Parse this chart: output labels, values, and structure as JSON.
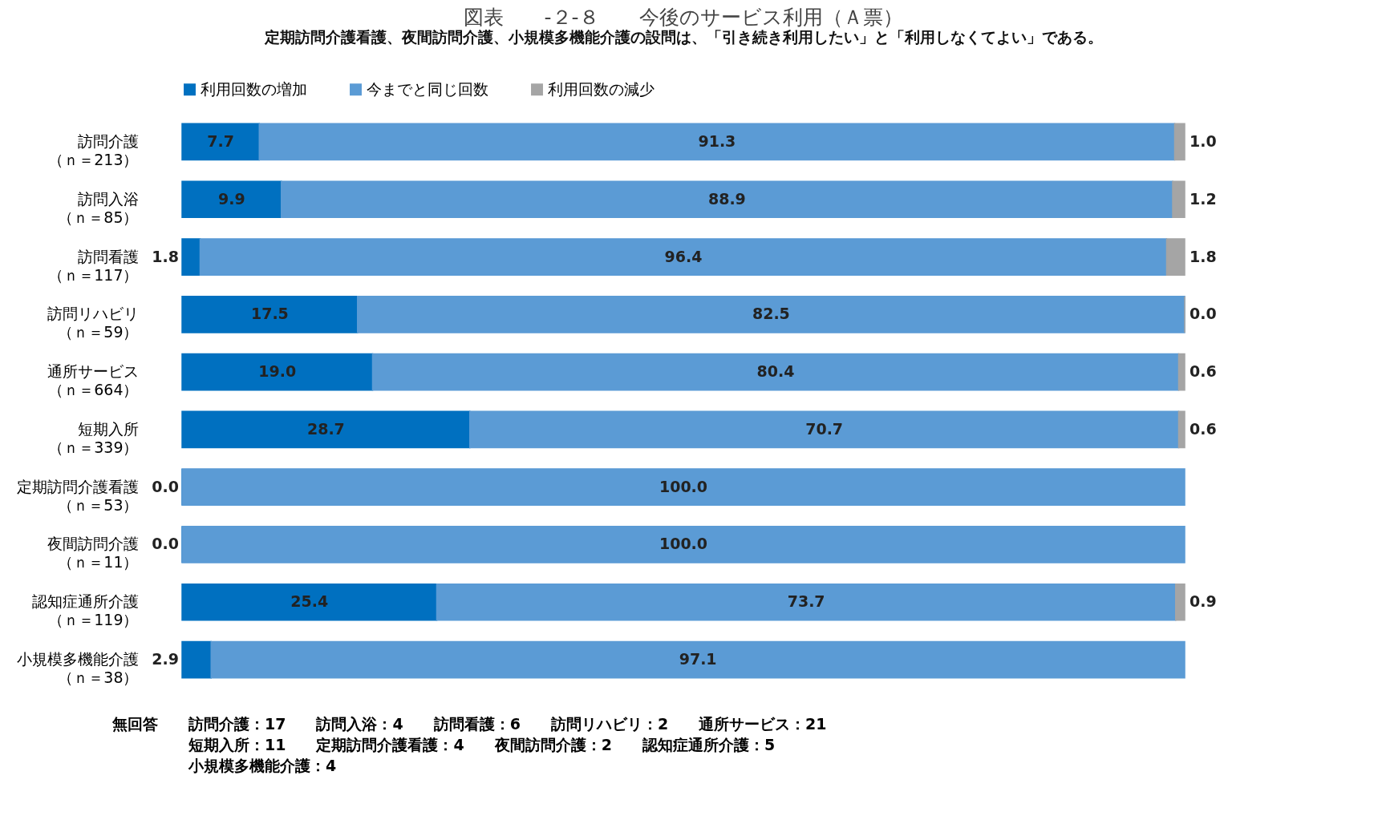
{
  "chart_data": {
    "type": "bar",
    "orientation": "horizontal",
    "stacked": true,
    "title": "図表　　-２-８　　今後のサービス利用（Ａ票）",
    "subtitle": "　定期訪問介護看護、夜間訪問介護、小規模多機能介護の設問は、「引き続き利用したい」と「利用しなくてよい」である。",
    "categories": [
      "訪問介護（ｎ＝213）",
      "訪問入浴（ｎ＝85）",
      "訪問看護（ｎ＝117）",
      "訪問リハビリ（ｎ＝59）",
      "通所サービス（ｎ＝664）",
      "短期入所（ｎ＝339）",
      "定期訪問介護看護（ｎ＝53）",
      "夜間訪問介護（ｎ＝11）",
      "認知症通所介護（ｎ＝119）",
      "小規模多機能介護（ｎ＝38）"
    ],
    "series": [
      {
        "name": "利用回数の増加",
        "color": "#0070c0",
        "values": [
          7.7,
          9.9,
          1.8,
          17.5,
          19.0,
          28.7,
          0.0,
          0.0,
          25.4,
          2.9
        ],
        "value_labels": [
          "7.7",
          "9.9",
          "1.8",
          "17.5",
          "19.0",
          "28.7",
          "0.0",
          "0.0",
          "25.4",
          "2.9"
        ]
      },
      {
        "name": "今までと同じ回数",
        "color": "#5b9bd5",
        "values": [
          91.3,
          88.9,
          96.4,
          82.5,
          80.4,
          70.7,
          100.0,
          100.0,
          73.7,
          97.1
        ],
        "value_labels": [
          "91.3",
          "88.9",
          "96.4",
          "82.5",
          "80.4",
          "70.7",
          "100.0",
          "100.0",
          "73.7",
          "97.1"
        ]
      },
      {
        "name": "利用回数の減少",
        "color": "#a5a5a5",
        "values": [
          1.0,
          1.2,
          1.8,
          0.0,
          0.6,
          0.6,
          null,
          null,
          0.9,
          null
        ],
        "value_labels": [
          "1.0",
          "1.2",
          "1.8",
          "0.0",
          "0.6",
          "0.6",
          null,
          null,
          "0.9",
          null
        ]
      }
    ],
    "legend": "top",
    "annotations": [
      "無回答　　訪問介護：17　　訪問入浴：4　　訪問看護：6　　訪問リハビリ：2　　通所サービス：21\n　　　　　短期入所：11　　定期訪問介護看護：4　　夜間訪問介護：2　　認知症通所介護：5\n　　　　　小規模多機能介護：4"
    ]
  }
}
